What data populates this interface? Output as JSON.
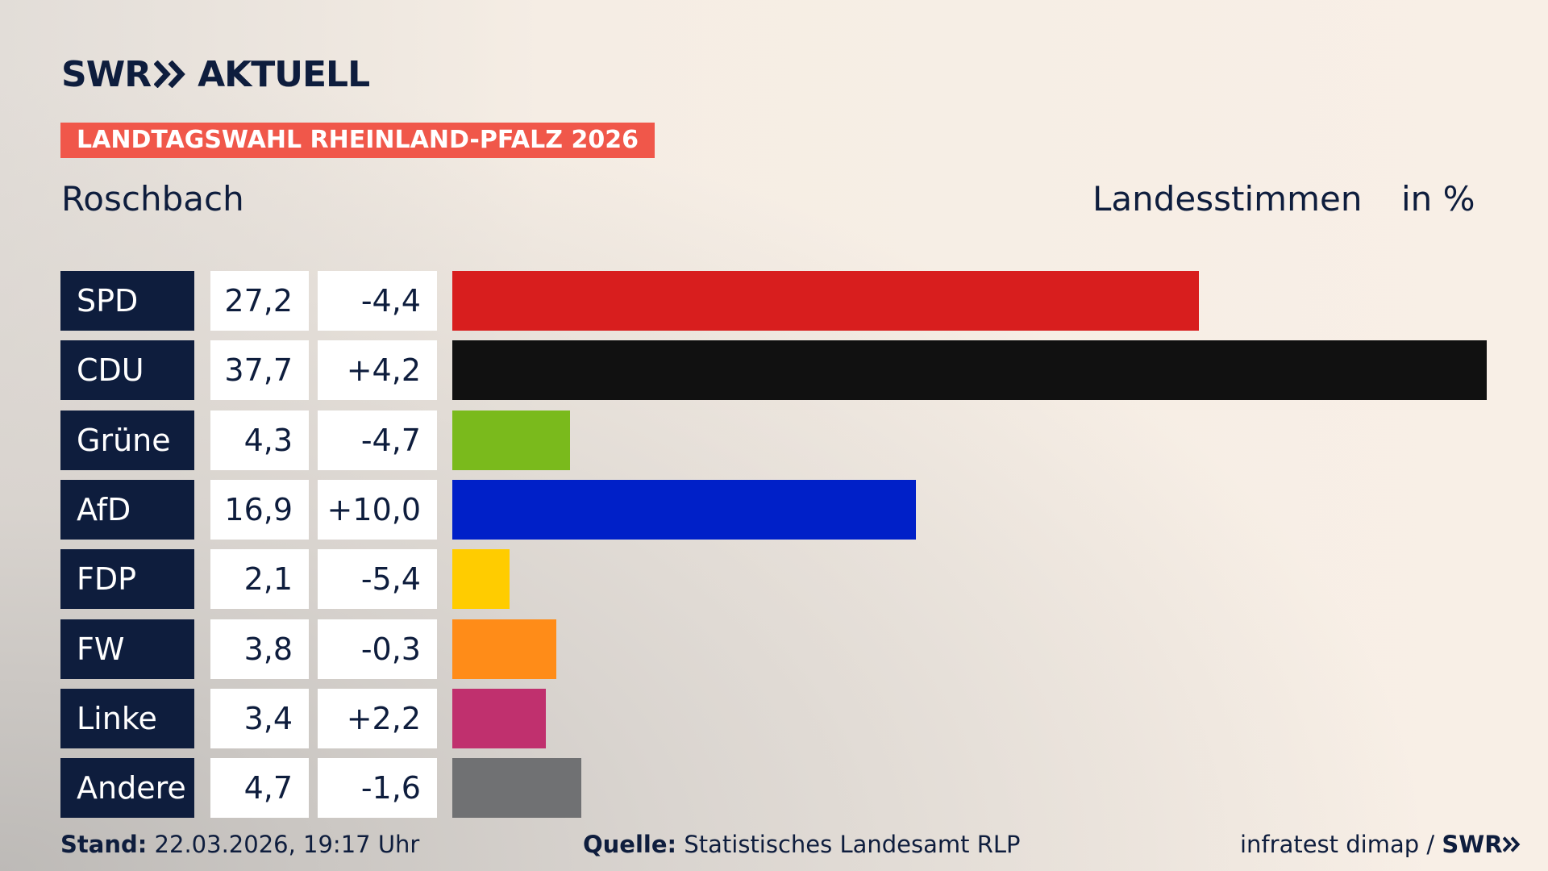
{
  "header": {
    "brand": "SWR",
    "product": "AKTUELL",
    "badge": "LANDTAGSWAHL RHEINLAND-PFALZ 2026"
  },
  "chart_data": {
    "type": "bar",
    "title": "Roschbach",
    "measure": "Landesstimmen",
    "unit": "in %",
    "categories": [
      "SPD",
      "CDU",
      "Grüne",
      "AfD",
      "FDP",
      "FW",
      "Linke",
      "Andere"
    ],
    "values": [
      27.2,
      37.7,
      4.3,
      16.9,
      2.1,
      3.8,
      3.4,
      4.7
    ],
    "value_labels": [
      "27,2",
      "37,7",
      "4,3",
      "16,9",
      "2,1",
      "3,8",
      "3,4",
      "4,7"
    ],
    "changes": [
      "-4,4",
      "+4,2",
      "-4,7",
      "+10,0",
      "-5,4",
      "-0,3",
      "+2,2",
      "-1,6"
    ],
    "colors": [
      "#d81e1e",
      "#111111",
      "#7aba1c",
      "#0020c8",
      "#ffcc00",
      "#ff8c18",
      "#c0306e",
      "#707173"
    ]
  },
  "footer": {
    "stand_label": "Stand:",
    "stand": "22.03.2026, 19:17 Uhr",
    "source_label": "Quelle:",
    "source": "Statistisches Landesamt RLP",
    "credit": "infratest dimap /",
    "credit_brand": "SWR"
  }
}
